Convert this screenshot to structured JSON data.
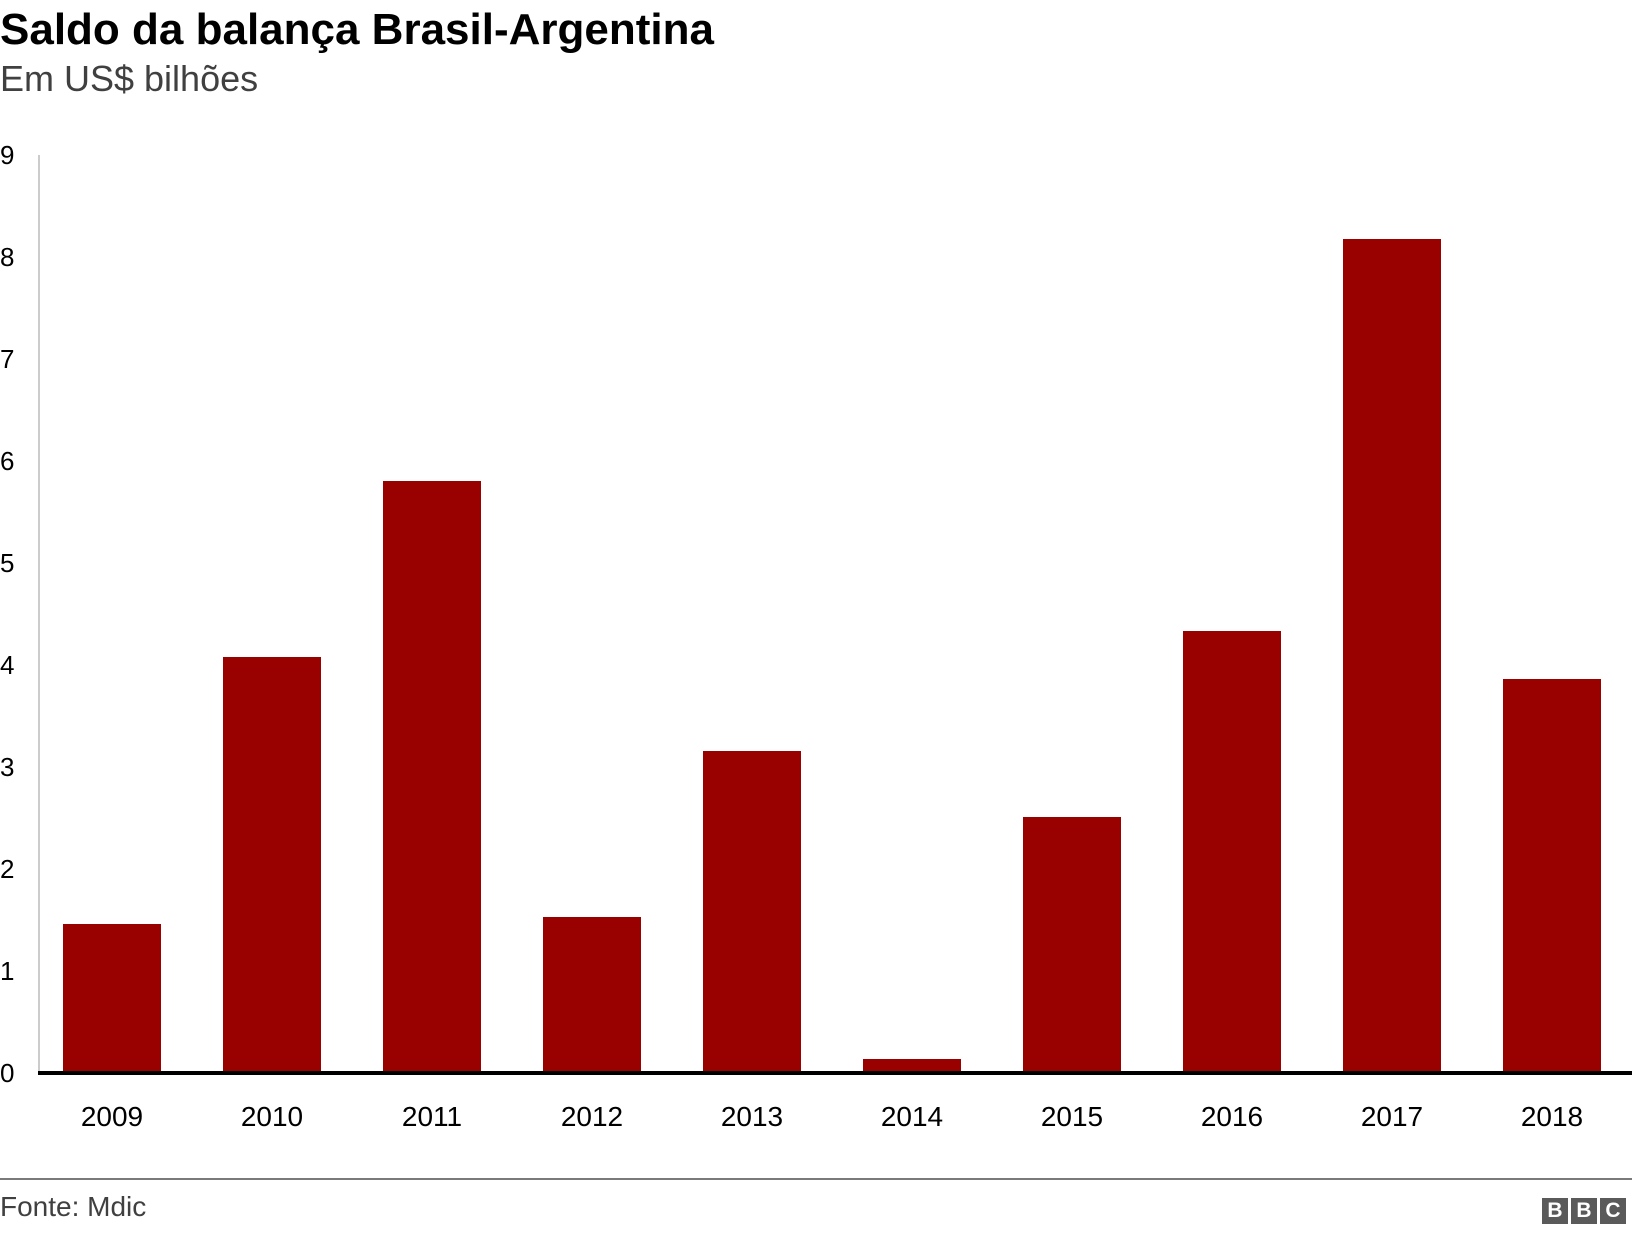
{
  "header": {
    "title": "Saldo da balança Brasil-Argentina",
    "subtitle": "Em US$ bilhões"
  },
  "footer": {
    "source": "Fonte: Mdic",
    "logo_letters": [
      "B",
      "B",
      "C"
    ]
  },
  "colors": {
    "bar": "#990000",
    "baseline": "#000000",
    "axis": "#cccccc",
    "logo": "#5a5a5a"
  },
  "axis": {
    "y_ticks": [
      "0",
      "1",
      "2",
      "3",
      "4",
      "5",
      "6",
      "7",
      "8",
      "9"
    ],
    "x_ticks": [
      "2009",
      "2010",
      "2011",
      "2012",
      "2013",
      "2014",
      "2015",
      "2016",
      "2017",
      "2018"
    ]
  },
  "chart_data": {
    "type": "bar",
    "title": "Saldo da balança Brasil-Argentina",
    "subtitle": "Em US$ bilhões",
    "categories": [
      "2009",
      "2010",
      "2011",
      "2012",
      "2013",
      "2014",
      "2015",
      "2016",
      "2017",
      "2018"
    ],
    "values": [
      1.46,
      4.08,
      5.8,
      1.53,
      3.16,
      0.14,
      2.51,
      4.33,
      8.18,
      3.86
    ],
    "xlabel": "",
    "ylabel": "US$ bilhões",
    "ylim": [
      0,
      9
    ],
    "yticks": [
      0,
      1,
      2,
      3,
      4,
      5,
      6,
      7,
      8,
      9
    ],
    "grid": false,
    "legend": null,
    "source": "Fonte: Mdic"
  }
}
